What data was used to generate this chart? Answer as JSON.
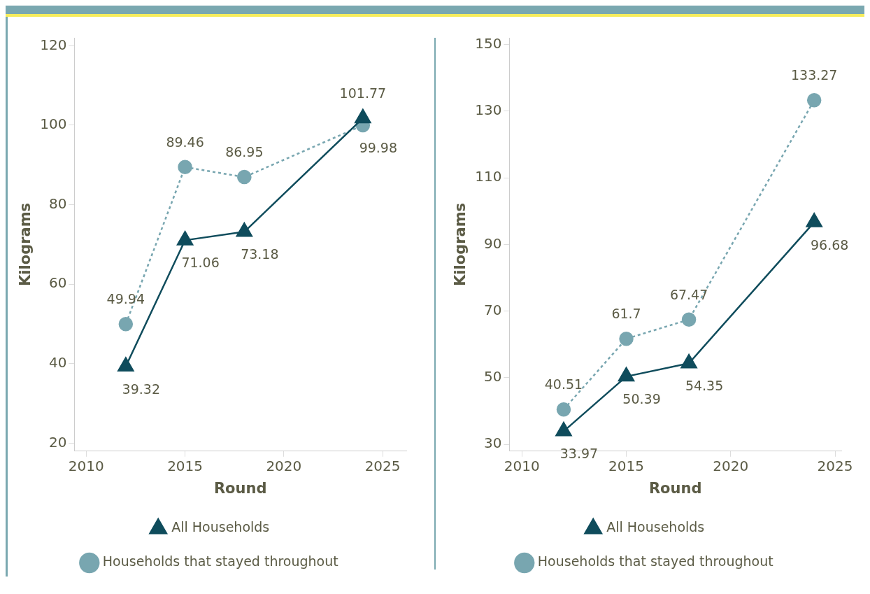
{
  "chart_data": [
    {
      "type": "line",
      "xlabel": "Round",
      "ylabel": "Kilograms",
      "x": [
        2012,
        2015,
        2018,
        2024
      ],
      "xlim": [
        2009.4,
        2026.2
      ],
      "xticks": [
        2010,
        2015,
        2020,
        2025
      ],
      "ylim": [
        18,
        122
      ],
      "yticks": [
        20,
        40,
        60,
        80,
        100,
        120
      ],
      "grid": false,
      "legend": "bottom",
      "data_labels": true,
      "series": [
        {
          "name": "All Households",
          "color": "#0f4c5c",
          "values": [
            39.32,
            71.06,
            73.18,
            101.77
          ],
          "marker": "triangle",
          "line_style": "solid"
        },
        {
          "name": "Households that stayed throughout",
          "color": "#78a6b0",
          "values": [
            49.94,
            89.46,
            86.95,
            99.98
          ],
          "marker": "circle",
          "line_style": "dashed"
        }
      ]
    },
    {
      "type": "line",
      "xlabel": "Round",
      "ylabel": "Kilograms",
      "x": [
        2012,
        2015,
        2018,
        2024
      ],
      "xlim": [
        2009.4,
        2025.3
      ],
      "xticks": [
        2010,
        2015,
        2020,
        2025
      ],
      "ylim": [
        28,
        152
      ],
      "yticks": [
        30,
        50,
        70,
        90,
        110,
        130,
        150
      ],
      "grid": false,
      "legend": "bottom",
      "data_labels": true,
      "series": [
        {
          "name": "All Households",
          "color": "#0f4c5c",
          "values": [
            33.97,
            50.39,
            54.35,
            96.68
          ],
          "marker": "triangle",
          "line_style": "solid"
        },
        {
          "name": "Households that stayed throughout",
          "color": "#78a6b0",
          "values": [
            40.51,
            61.7,
            67.47,
            133.27
          ],
          "marker": "circle",
          "line_style": "dashed"
        }
      ]
    }
  ]
}
